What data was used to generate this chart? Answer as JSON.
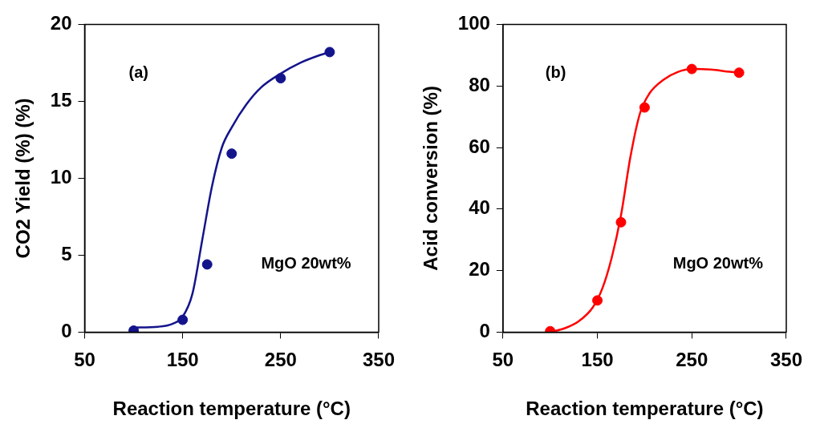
{
  "chart_data": [
    {
      "type": "scatter",
      "xlabel": "Reaction temperature (°C)",
      "ylabel": "CO2 Yield (%) (%)",
      "annotations": [
        "(a)",
        "MgO 20wt%"
      ],
      "xlim": [
        50,
        350
      ],
      "xticks": [
        50,
        150,
        250,
        350
      ],
      "ylim": [
        0,
        20
      ],
      "yticks": [
        0,
        5,
        10,
        15,
        20
      ],
      "grid": false,
      "legend": false,
      "series": [
        {
          "type": "line",
          "color": "#14148c",
          "marker": "none",
          "line_style": "solid",
          "x": [
            100,
            125,
            140,
            150,
            160,
            170,
            180,
            190,
            200,
            215,
            230,
            250,
            270,
            290,
            300
          ],
          "values": [
            0.3,
            0.35,
            0.55,
            1.0,
            2.5,
            6,
            9.5,
            12,
            13.3,
            14.8,
            15.9,
            16.8,
            17.5,
            18.0,
            18.2
          ]
        },
        {
          "color": "#14148c",
          "marker": "circle",
          "x": [
            100,
            150,
            175,
            200,
            250,
            300
          ],
          "values": [
            0.1,
            0.8,
            4.4,
            11.6,
            16.5,
            18.2
          ]
        }
      ]
    },
    {
      "type": "scatter",
      "xlabel": "Reaction temperature (°C)",
      "ylabel": "Acid conversion (%)",
      "annotations": [
        "(b)",
        "MgO 20wt%"
      ],
      "xlim": [
        50,
        350
      ],
      "xticks": [
        50,
        150,
        250,
        350
      ],
      "ylim": [
        0,
        100
      ],
      "yticks": [
        0,
        20,
        40,
        60,
        80,
        100
      ],
      "grid": false,
      "legend": false,
      "series": [
        {
          "type": "line",
          "color": "#ff0000",
          "marker": "none",
          "line_style": "solid",
          "x": [
            100,
            115,
            130,
            145,
            155,
            165,
            175,
            185,
            195,
            205,
            220,
            235,
            250,
            270,
            290,
            300
          ],
          "values": [
            0,
            1.2,
            3.5,
            8,
            14,
            24,
            38,
            57,
            71,
            77.5,
            82,
            84.5,
            85.5,
            85.3,
            84.6,
            84.3
          ]
        },
        {
          "color": "#ff0000",
          "marker": "circle",
          "x": [
            100,
            150,
            175,
            200,
            250,
            300
          ],
          "values": [
            0.3,
            10.3,
            35.7,
            73,
            85.5,
            84.3
          ]
        }
      ]
    }
  ]
}
